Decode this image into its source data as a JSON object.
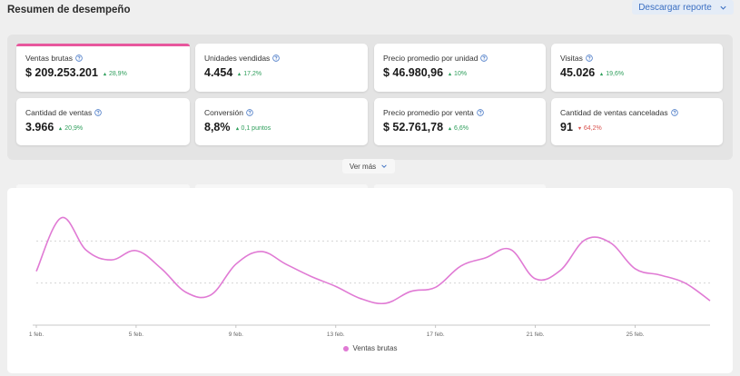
{
  "header": {
    "title": "Resumen de desempeño",
    "download_label": "Descargar reporte"
  },
  "metrics": [
    {
      "label": "Ventas brutas",
      "value": "$ 209.253.201",
      "delta": "28,9%",
      "trend": "up",
      "active": true
    },
    {
      "label": "Unidades vendidas",
      "value": "4.454",
      "delta": "17,2%",
      "trend": "up"
    },
    {
      "label": "Precio promedio por unidad",
      "value": "$ 46.980,96",
      "delta": "10%",
      "trend": "up"
    },
    {
      "label": "Visitas",
      "value": "45.026",
      "delta": "19,6%",
      "trend": "up"
    },
    {
      "label": "Cantidad de ventas",
      "value": "3.966",
      "delta": "20,9%",
      "trend": "up"
    },
    {
      "label": "Conversión",
      "value": "8,8%",
      "delta": "0,1 puntos",
      "trend": "up"
    },
    {
      "label": "Precio promedio por venta",
      "value": "$ 52.761,78",
      "delta": "6,6%",
      "trend": "up"
    },
    {
      "label": "Cantidad de ventas canceladas",
      "value": "91",
      "delta": "64,2%",
      "trend": "down"
    }
  ],
  "see_more_label": "Ver más",
  "colors": {
    "accent": "#e8579d",
    "line": "#e07ad4",
    "up": "#2e9e5b",
    "down": "#d9534f",
    "link": "#3b6fc2"
  },
  "chart_data": {
    "type": "line",
    "title": "",
    "xlabel": "",
    "ylabel": "",
    "x_tick_labels": [
      "1 feb.",
      "5 feb.",
      "9 feb.",
      "13 feb.",
      "17 feb.",
      "21 feb.",
      "25 feb."
    ],
    "x": [
      1,
      2,
      3,
      4,
      5,
      6,
      7,
      8,
      9,
      10,
      11,
      12,
      13,
      14,
      15,
      16,
      17,
      18,
      19,
      20,
      21,
      22,
      23,
      24,
      25,
      26,
      27,
      28
    ],
    "series": [
      {
        "name": "Ventas brutas",
        "values": [
          1.28,
          2.55,
          1.78,
          1.55,
          1.77,
          1.35,
          0.78,
          0.72,
          1.45,
          1.75,
          1.45,
          1.16,
          0.92,
          0.63,
          0.52,
          0.8,
          0.9,
          1.4,
          1.6,
          1.8,
          1.1,
          1.3,
          2.03,
          1.96,
          1.34,
          1.19,
          1.0,
          0.58
        ]
      }
    ],
    "ylim": [
      0,
      3
    ],
    "gridlines": [
      1,
      2
    ],
    "legend": "bottom-center"
  }
}
